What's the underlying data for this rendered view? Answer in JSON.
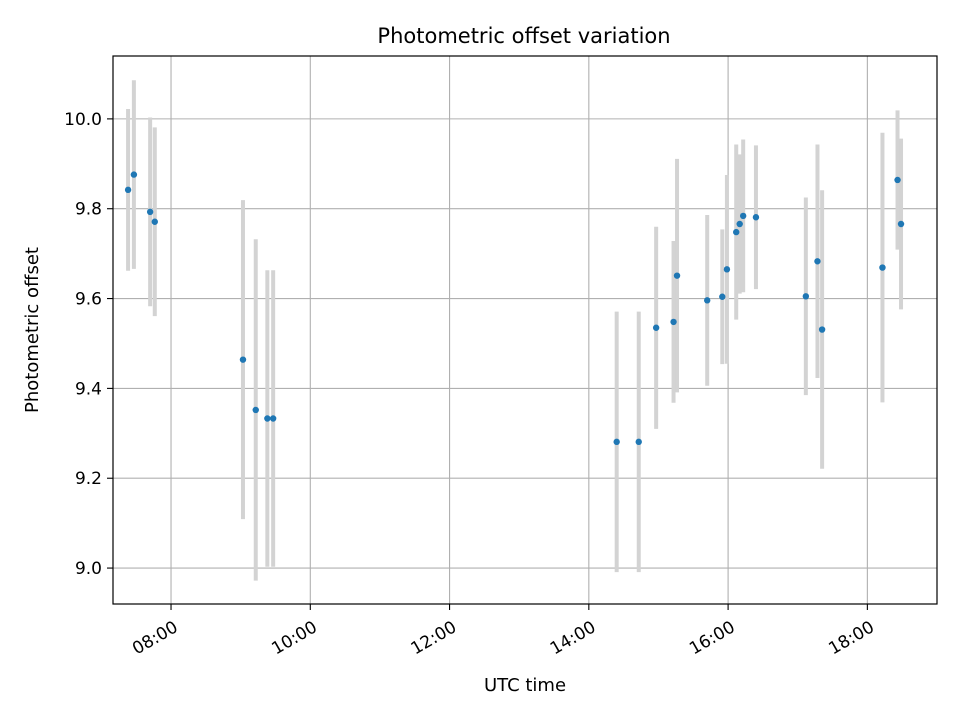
{
  "chart_data": {
    "type": "scatter",
    "title": "Photometric offset variation",
    "xlabel": "UTC time",
    "ylabel": "Photometric offset",
    "x_is_time": true,
    "xlim": [
      "07:10",
      "19:00"
    ],
    "ylim": [
      8.92,
      10.14
    ],
    "xticks": [
      "08:00",
      "10:00",
      "12:00",
      "14:00",
      "16:00",
      "18:00"
    ],
    "yticks": [
      9.0,
      9.2,
      9.4,
      9.6,
      9.8,
      10.0
    ],
    "ytick_labels": [
      "9.0",
      "9.2",
      "9.4",
      "9.6",
      "9.8",
      "10.0"
    ],
    "grid": true,
    "point_color": "#1f77b4",
    "errorbar_color": "#d3d3d3",
    "points": [
      {
        "x": "07:23",
        "y": 9.842,
        "err": 0.18
      },
      {
        "x": "07:28",
        "y": 9.876,
        "err": 0.21
      },
      {
        "x": "07:42",
        "y": 9.793,
        "err": 0.21
      },
      {
        "x": "07:46",
        "y": 9.771,
        "err": 0.21
      },
      {
        "x": "09:02",
        "y": 9.464,
        "err": 0.355
      },
      {
        "x": "09:13",
        "y": 9.352,
        "err": 0.38
      },
      {
        "x": "09:23",
        "y": 9.333,
        "err": 0.33
      },
      {
        "x": "09:28",
        "y": 9.333,
        "err": 0.33
      },
      {
        "x": "14:24",
        "y": 9.281,
        "err": 0.29
      },
      {
        "x": "14:43",
        "y": 9.281,
        "err": 0.29
      },
      {
        "x": "14:58",
        "y": 9.535,
        "err": 0.225
      },
      {
        "x": "15:13",
        "y": 9.548,
        "err": 0.18
      },
      {
        "x": "15:16",
        "y": 9.651,
        "err": 0.26
      },
      {
        "x": "15:42",
        "y": 9.596,
        "err": 0.19
      },
      {
        "x": "15:55",
        "y": 9.604,
        "err": 0.15
      },
      {
        "x": "15:59",
        "y": 9.665,
        "err": 0.21
      },
      {
        "x": "16:07",
        "y": 9.748,
        "err": 0.195
      },
      {
        "x": "16:10",
        "y": 9.766,
        "err": 0.155
      },
      {
        "x": "16:13",
        "y": 9.784,
        "err": 0.17
      },
      {
        "x": "16:24",
        "y": 9.781,
        "err": 0.16
      },
      {
        "x": "17:07",
        "y": 9.605,
        "err": 0.22
      },
      {
        "x": "17:17",
        "y": 9.683,
        "err": 0.26
      },
      {
        "x": "17:21",
        "y": 9.531,
        "err": 0.31
      },
      {
        "x": "18:13",
        "y": 9.669,
        "err": 0.3
      },
      {
        "x": "18:26",
        "y": 9.864,
        "err": 0.155
      },
      {
        "x": "18:29",
        "y": 9.766,
        "err": 0.19
      }
    ]
  }
}
